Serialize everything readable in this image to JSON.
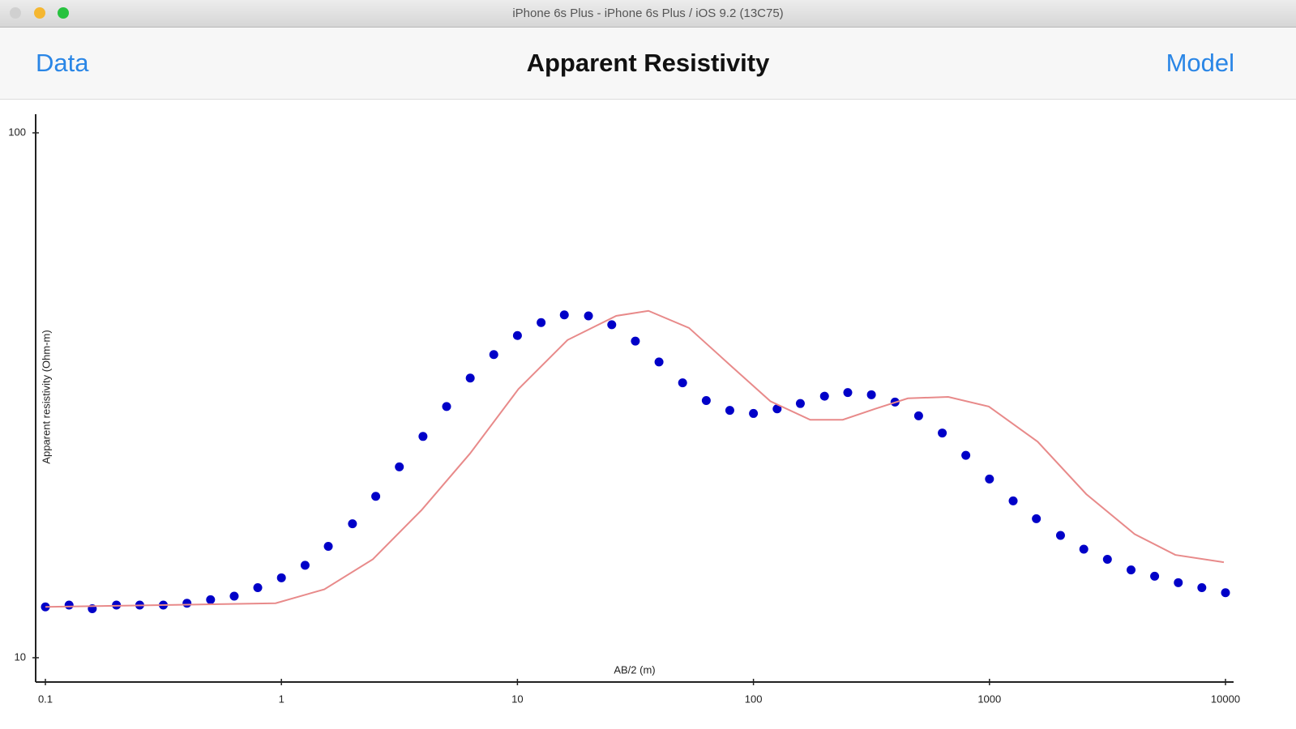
{
  "window": {
    "title": "iPhone 6s Plus - iPhone 6s Plus / iOS 9.2 (13C75)"
  },
  "nav_bar": {
    "left_button": "Data",
    "title": "Apparent Resistivity",
    "right_button": "Model"
  },
  "chart_data": {
    "type": "scatter",
    "xlabel": "AB/2 (m)",
    "ylabel": "Apparent resistivity (Ohm-m)",
    "xscale": "log",
    "yscale": "log",
    "xlim": [
      0.1,
      10000
    ],
    "ylim": [
      10,
      100
    ],
    "xticks": [
      0.1,
      1,
      10,
      100,
      1000,
      10000
    ],
    "yticks": [
      10,
      100
    ],
    "series": [
      {
        "type": "scatter",
        "color": "#0000c8",
        "x": [
          0.1,
          0.126,
          0.158,
          0.2,
          0.251,
          0.316,
          0.398,
          0.501,
          0.631,
          0.794,
          1,
          1.26,
          1.58,
          2,
          2.51,
          3.16,
          3.98,
          5.01,
          6.31,
          7.94,
          10,
          12.6,
          15.8,
          20,
          25.1,
          31.6,
          39.8,
          50.1,
          63.1,
          79.4,
          100,
          126,
          158,
          200,
          251,
          316,
          398,
          501,
          631,
          794,
          1000,
          1260,
          1580,
          2000,
          2510,
          3160,
          3980,
          5010,
          6310,
          7940,
          10000
        ],
        "values": [
          12.5,
          12.6,
          12.4,
          12.6,
          12.6,
          12.6,
          12.7,
          12.9,
          13.1,
          13.6,
          14.2,
          15.0,
          16.3,
          18.0,
          20.3,
          23.1,
          26.4,
          30.1,
          34.1,
          37.8,
          41.1,
          43.5,
          45.0,
          44.8,
          43.1,
          40.1,
          36.6,
          33.4,
          30.9,
          29.6,
          29.2,
          29.8,
          30.5,
          31.5,
          32.0,
          31.7,
          30.7,
          28.9,
          26.8,
          24.3,
          21.9,
          19.9,
          18.4,
          17.1,
          16.1,
          15.4,
          14.7,
          14.3,
          13.9,
          13.6,
          13.3
        ]
      },
      {
        "type": "line",
        "color": "#e88a8a",
        "x": [
          0.1,
          0.312,
          0.945,
          1.52,
          2.44,
          3.92,
          6.3,
          10.1,
          16.3,
          26.2,
          35.9,
          53.3,
          79.1,
          118,
          174,
          239,
          328,
          451,
          669,
          994,
          1600,
          2570,
          4120,
          6130,
          9840
        ],
        "values": [
          12.5,
          12.6,
          12.7,
          13.5,
          15.4,
          19.1,
          24.5,
          32.5,
          40.3,
          44.8,
          45.8,
          42.5,
          36.2,
          30.8,
          28.4,
          28.4,
          29.8,
          31.2,
          31.4,
          30.1,
          25.8,
          20.5,
          17.2,
          15.7,
          15.2
        ]
      }
    ]
  }
}
